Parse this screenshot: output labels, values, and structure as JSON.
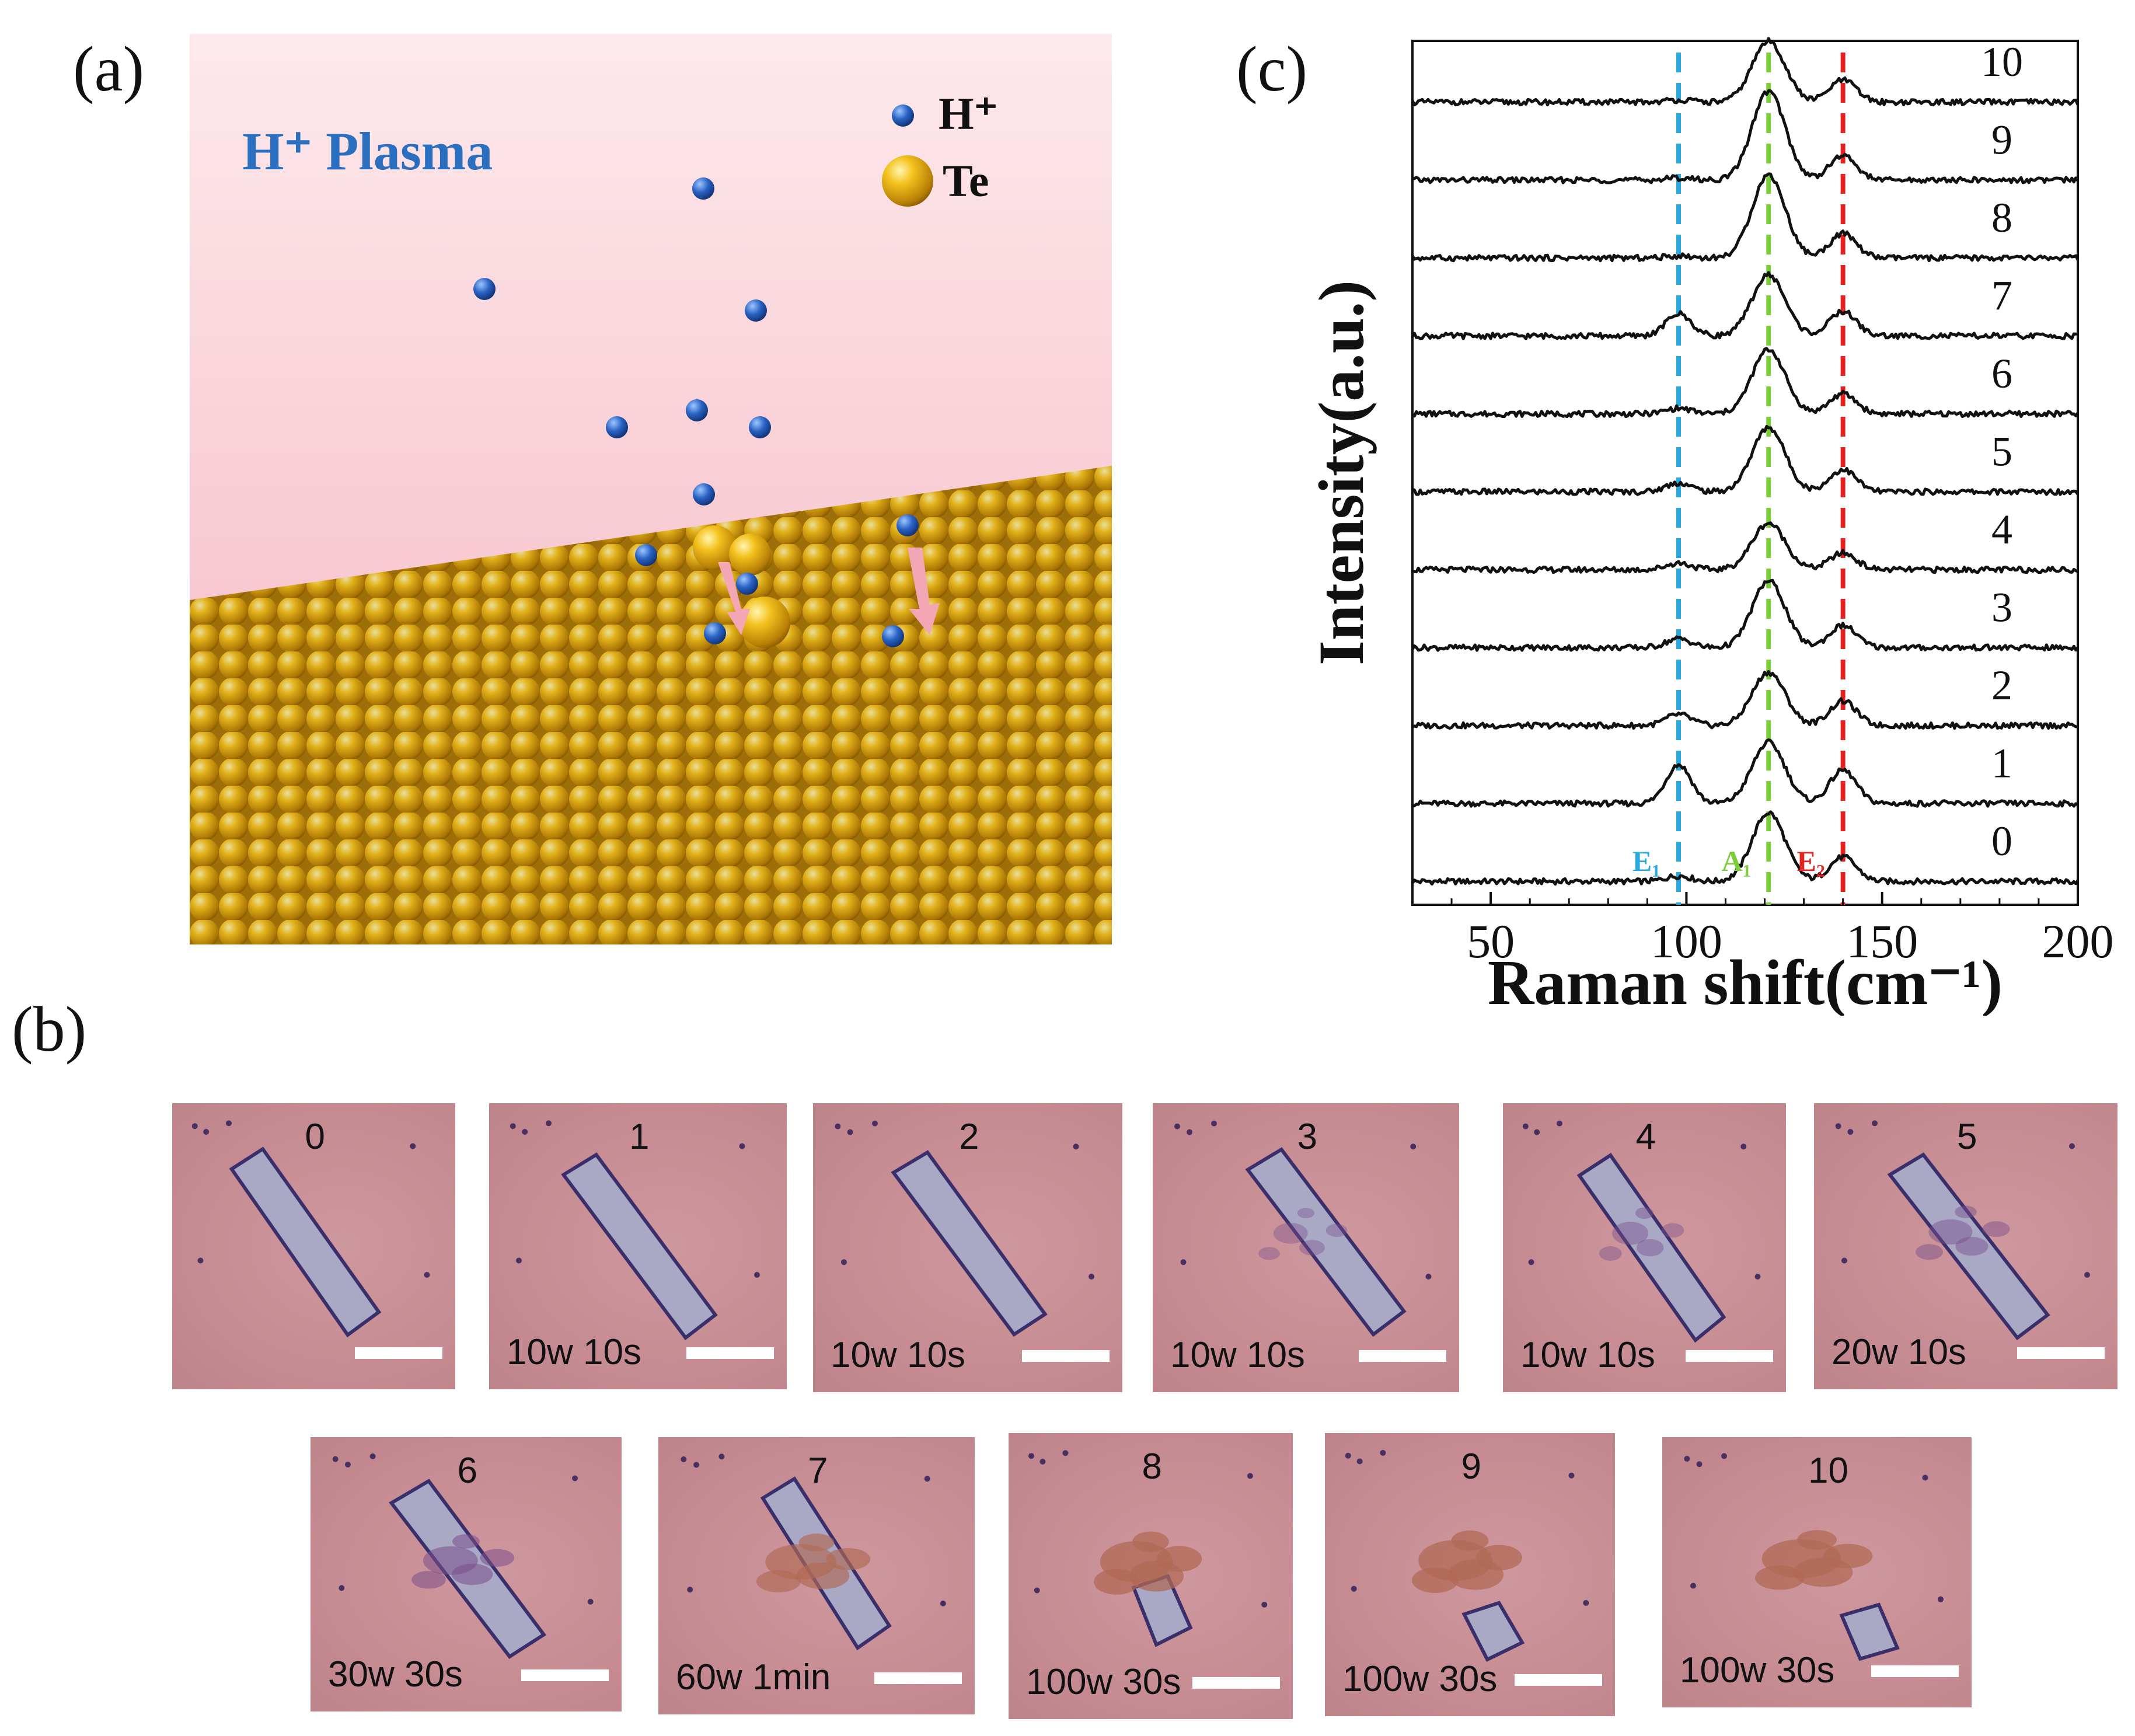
{
  "panels": {
    "a": {
      "label": "(a)",
      "title": "H⁺ Plasma",
      "legend_h": "H⁺",
      "legend_te": "Te"
    },
    "b": {
      "label": "(b)",
      "images": [
        {
          "num": "0",
          "cond": ""
        },
        {
          "num": "1",
          "cond": "10w 10s"
        },
        {
          "num": "2",
          "cond": "10w 10s"
        },
        {
          "num": "3",
          "cond": "10w 10s"
        },
        {
          "num": "4",
          "cond": "10w 10s"
        },
        {
          "num": "5",
          "cond": "20w 10s"
        },
        {
          "num": "6",
          "cond": "30w 30s"
        },
        {
          "num": "7",
          "cond": "60w 1min"
        },
        {
          "num": "8",
          "cond": "100w 30s"
        },
        {
          "num": "9",
          "cond": "100w 30s"
        },
        {
          "num": "10",
          "cond": "100w 30s"
        }
      ]
    },
    "c": {
      "label": "(c)"
    }
  },
  "colors": {
    "e1": "#29a9e0",
    "a1": "#7ccd3c",
    "e2": "#e52421",
    "trace": "#111111",
    "plasma_top": "#fbe7ea",
    "plasma_bottom": "#f5b9c2",
    "h_ion": "#2a5fb8",
    "te": "#e6b31c"
  },
  "chart_data": {
    "type": "line",
    "title": "",
    "xlabel": "Raman shift(cm⁻¹)",
    "ylabel": "Intensity(a.u.)",
    "xlim": [
      30,
      200
    ],
    "xticks": [
      50,
      100,
      150,
      200
    ],
    "xtick_labels": [
      "50",
      "100",
      "150",
      "200"
    ],
    "vlines": [
      {
        "x": 98,
        "label": "E₁",
        "color": "#29a9e0"
      },
      {
        "x": 121,
        "label": "A₁",
        "color": "#7ccd3c"
      },
      {
        "x": 140,
        "label": "E₂",
        "color": "#e52421"
      }
    ],
    "series": [
      {
        "name": "0",
        "peaks": [
          {
            "x": 98,
            "h": 0.05
          },
          {
            "x": 121,
            "h": 0.62
          },
          {
            "x": 140,
            "h": 0.22
          }
        ]
      },
      {
        "name": "1",
        "peaks": [
          {
            "x": 98,
            "h": 0.35
          },
          {
            "x": 121,
            "h": 0.55
          },
          {
            "x": 140,
            "h": 0.3
          }
        ]
      },
      {
        "name": "2",
        "peaks": [
          {
            "x": 98,
            "h": 0.1
          },
          {
            "x": 121,
            "h": 0.48
          },
          {
            "x": 140,
            "h": 0.22
          }
        ]
      },
      {
        "name": "3",
        "peaks": [
          {
            "x": 98,
            "h": 0.08
          },
          {
            "x": 121,
            "h": 0.6
          },
          {
            "x": 140,
            "h": 0.2
          }
        ]
      },
      {
        "name": "4",
        "peaks": [
          {
            "x": 98,
            "h": 0.06
          },
          {
            "x": 121,
            "h": 0.42
          },
          {
            "x": 140,
            "h": 0.15
          }
        ]
      },
      {
        "name": "5",
        "peaks": [
          {
            "x": 98,
            "h": 0.08
          },
          {
            "x": 121,
            "h": 0.58
          },
          {
            "x": 140,
            "h": 0.2
          }
        ]
      },
      {
        "name": "6",
        "peaks": [
          {
            "x": 98,
            "h": 0.05
          },
          {
            "x": 121,
            "h": 0.58
          },
          {
            "x": 140,
            "h": 0.18
          }
        ]
      },
      {
        "name": "7",
        "peaks": [
          {
            "x": 98,
            "h": 0.2
          },
          {
            "x": 121,
            "h": 0.55
          },
          {
            "x": 140,
            "h": 0.22
          }
        ]
      },
      {
        "name": "8",
        "peaks": [
          {
            "x": 98,
            "h": 0.02
          },
          {
            "x": 121,
            "h": 0.75
          },
          {
            "x": 140,
            "h": 0.22
          }
        ]
      },
      {
        "name": "9",
        "peaks": [
          {
            "x": 98,
            "h": 0.02
          },
          {
            "x": 121,
            "h": 0.8
          },
          {
            "x": 140,
            "h": 0.22
          }
        ]
      },
      {
        "name": "10",
        "peaks": [
          {
            "x": 98,
            "h": 0.02
          },
          {
            "x": 121,
            "h": 0.55
          },
          {
            "x": 140,
            "h": 0.2
          }
        ]
      }
    ]
  }
}
